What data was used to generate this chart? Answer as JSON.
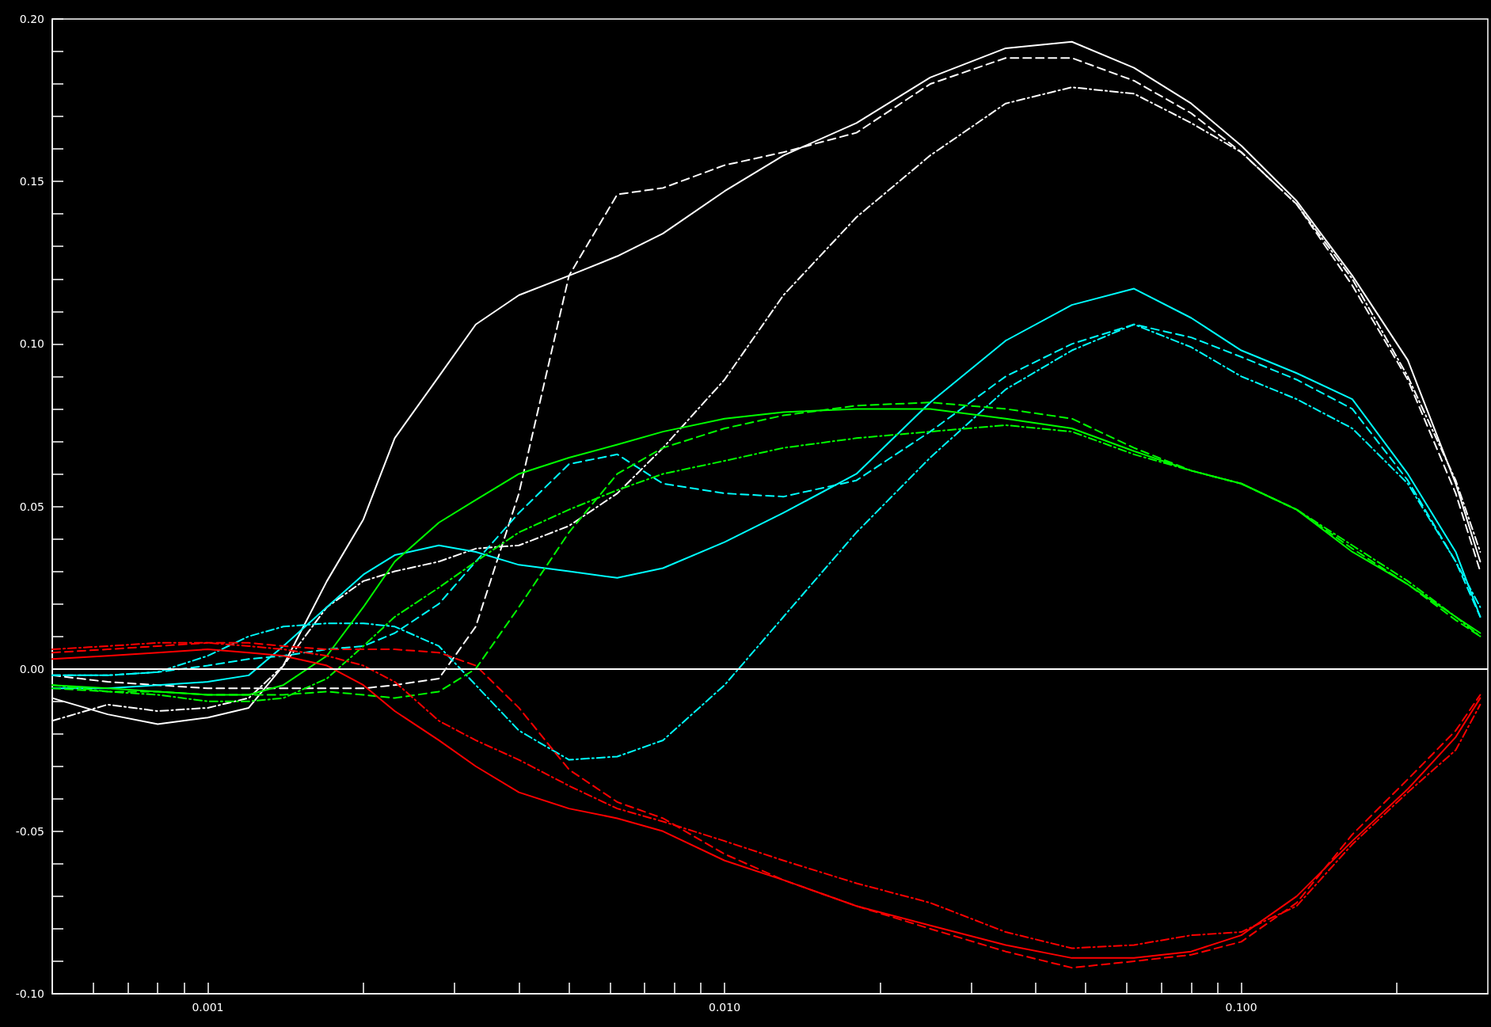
{
  "chart_data": {
    "type": "line",
    "log": "x",
    "grid": false,
    "marker": "none",
    "xlim": [
      0.0005,
      0.3
    ],
    "ylim": [
      -0.1,
      0.2
    ],
    "xticks": [
      {
        "value": 0.0006,
        "label": null
      },
      {
        "value": 0.0007,
        "label": null
      },
      {
        "value": 0.0008,
        "label": null
      },
      {
        "value": 0.0009,
        "label": null
      },
      {
        "value": 0.001,
        "label": "0.001"
      },
      {
        "value": 0.002,
        "label": null
      },
      {
        "value": 0.003,
        "label": null
      },
      {
        "value": 0.004,
        "label": null
      },
      {
        "value": 0.005,
        "label": null
      },
      {
        "value": 0.006,
        "label": null
      },
      {
        "value": 0.007,
        "label": null
      },
      {
        "value": 0.008,
        "label": null
      },
      {
        "value": 0.009,
        "label": null
      },
      {
        "value": 0.01,
        "label": "0.010"
      },
      {
        "value": 0.02,
        "label": null
      },
      {
        "value": 0.03,
        "label": null
      },
      {
        "value": 0.04,
        "label": null
      },
      {
        "value": 0.05,
        "label": null
      },
      {
        "value": 0.06,
        "label": null
      },
      {
        "value": 0.07,
        "label": null
      },
      {
        "value": 0.08,
        "label": null
      },
      {
        "value": 0.09,
        "label": null
      },
      {
        "value": 0.1,
        "label": "0.100"
      },
      {
        "value": 0.2,
        "label": null
      }
    ],
    "yticks": [
      {
        "value": -0.1,
        "label": "-0.10"
      },
      {
        "value": -0.09,
        "label": null
      },
      {
        "value": -0.08,
        "label": null
      },
      {
        "value": -0.07,
        "label": null
      },
      {
        "value": -0.06,
        "label": null
      },
      {
        "value": -0.05,
        "label": "-0.05"
      },
      {
        "value": -0.04,
        "label": null
      },
      {
        "value": -0.03,
        "label": null
      },
      {
        "value": -0.02,
        "label": null
      },
      {
        "value": -0.01,
        "label": null
      },
      {
        "value": 0,
        "label": "0.00"
      },
      {
        "value": 0.01,
        "label": null
      },
      {
        "value": 0.02,
        "label": null
      },
      {
        "value": 0.03,
        "label": null
      },
      {
        "value": 0.04,
        "label": null
      },
      {
        "value": 0.05,
        "label": "0.05"
      },
      {
        "value": 0.06,
        "label": null
      },
      {
        "value": 0.07,
        "label": null
      },
      {
        "value": 0.08,
        "label": null
      },
      {
        "value": 0.09,
        "label": null
      },
      {
        "value": 0.1,
        "label": "0.10"
      },
      {
        "value": 0.11,
        "label": null
      },
      {
        "value": 0.12,
        "label": null
      },
      {
        "value": 0.13,
        "label": null
      },
      {
        "value": 0.14,
        "label": null
      },
      {
        "value": 0.15,
        "label": "0.15"
      },
      {
        "value": 0.16,
        "label": null
      },
      {
        "value": 0.17,
        "label": null
      },
      {
        "value": 0.18,
        "label": null
      },
      {
        "value": 0.19,
        "label": null
      },
      {
        "value": 0.2,
        "label": "0.20"
      }
    ],
    "ref_lines": [
      {
        "axis": "y",
        "value": 0,
        "color": "#ffffff",
        "line_style": "solid"
      }
    ],
    "x": [
      0.0005,
      0.00064,
      0.0008,
      0.001,
      0.0012,
      0.0014,
      0.0017,
      0.002,
      0.0023,
      0.0028,
      0.0033,
      0.004,
      0.005,
      0.0062,
      0.0076,
      0.01,
      0.013,
      0.018,
      0.025,
      0.035,
      0.047,
      0.062,
      0.08,
      0.1,
      0.128,
      0.164,
      0.21,
      0.26,
      0.29
    ],
    "series": [
      {
        "color": "#ffffff",
        "line_style": "solid",
        "values": [
          -0.009,
          -0.014,
          -0.017,
          -0.015,
          -0.012,
          0.001,
          0.027,
          0.046,
          0.071,
          0.09,
          0.106,
          0.115,
          0.121,
          0.127,
          0.134,
          0.147,
          0.158,
          0.168,
          0.182,
          0.191,
          0.193,
          0.185,
          0.174,
          0.161,
          0.144,
          0.121,
          0.095,
          0.057,
          0.033
        ]
      },
      {
        "color": "#ffffff",
        "line_style": "dashed",
        "values": [
          -0.002,
          -0.004,
          -0.005,
          -0.006,
          -0.006,
          -0.006,
          -0.006,
          -0.006,
          -0.005,
          -0.003,
          0.013,
          0.054,
          0.121,
          0.146,
          0.148,
          0.155,
          0.159,
          0.165,
          0.18,
          0.188,
          0.188,
          0.181,
          0.171,
          0.159,
          0.143,
          0.118,
          0.089,
          0.054,
          0.03
        ]
      },
      {
        "color": "#ffffff",
        "line_style": "dashdot",
        "values": [
          -0.016,
          -0.011,
          -0.013,
          -0.012,
          -0.009,
          0.001,
          0.019,
          0.027,
          0.03,
          0.033,
          0.037,
          0.038,
          0.044,
          0.054,
          0.068,
          0.089,
          0.115,
          0.139,
          0.158,
          0.174,
          0.179,
          0.177,
          0.168,
          0.159,
          0.143,
          0.12,
          0.09,
          0.058,
          0.036
        ]
      },
      {
        "color": "#00ffff",
        "line_style": "solid",
        "values": [
          -0.006,
          -0.006,
          -0.005,
          -0.004,
          -0.002,
          0.007,
          0.019,
          0.029,
          0.035,
          0.038,
          0.036,
          0.032,
          0.03,
          0.028,
          0.031,
          0.039,
          0.048,
          0.06,
          0.082,
          0.101,
          0.112,
          0.117,
          0.108,
          0.098,
          0.091,
          0.083,
          0.06,
          0.036,
          0.016
        ]
      },
      {
        "color": "#00ffff",
        "line_style": "dashed",
        "values": [
          -0.002,
          -0.002,
          -0.001,
          0.001,
          0.003,
          0.004,
          0.006,
          0.007,
          0.011,
          0.02,
          0.033,
          0.048,
          0.063,
          0.066,
          0.057,
          0.054,
          0.053,
          0.058,
          0.073,
          0.09,
          0.1,
          0.106,
          0.102,
          0.096,
          0.089,
          0.08,
          0.058,
          0.033,
          0.016
        ]
      },
      {
        "color": "#00ffff",
        "line_style": "dashdot",
        "values": [
          -0.002,
          -0.002,
          -0.001,
          0.004,
          0.01,
          0.013,
          0.014,
          0.014,
          0.013,
          0.007,
          -0.005,
          -0.019,
          -0.028,
          -0.027,
          -0.022,
          -0.005,
          0.016,
          0.042,
          0.065,
          0.086,
          0.098,
          0.106,
          0.099,
          0.09,
          0.083,
          0.074,
          0.057,
          0.033,
          0.019
        ]
      },
      {
        "color": "#00ff00",
        "line_style": "solid",
        "values": [
          -0.005,
          -0.006,
          -0.007,
          -0.008,
          -0.008,
          -0.005,
          0.004,
          0.019,
          0.033,
          0.045,
          0.052,
          0.06,
          0.065,
          0.069,
          0.073,
          0.077,
          0.079,
          0.08,
          0.08,
          0.077,
          0.074,
          0.067,
          0.061,
          0.057,
          0.049,
          0.036,
          0.026,
          0.016,
          0.011
        ]
      },
      {
        "color": "#00ff00",
        "line_style": "dashed",
        "values": [
          -0.006,
          -0.007,
          -0.007,
          -0.008,
          -0.008,
          -0.008,
          -0.007,
          -0.008,
          -0.009,
          -0.007,
          0.0,
          0.019,
          0.042,
          0.06,
          0.068,
          0.074,
          0.078,
          0.081,
          0.082,
          0.08,
          0.077,
          0.068,
          0.061,
          0.057,
          0.049,
          0.037,
          0.026,
          0.015,
          0.01
        ]
      },
      {
        "color": "#00ff00",
        "line_style": "dashdot",
        "values": [
          -0.005,
          -0.007,
          -0.008,
          -0.01,
          -0.01,
          -0.009,
          -0.003,
          0.007,
          0.016,
          0.025,
          0.033,
          0.042,
          0.049,
          0.055,
          0.06,
          0.064,
          0.068,
          0.071,
          0.073,
          0.075,
          0.073,
          0.066,
          0.061,
          0.057,
          0.049,
          0.038,
          0.027,
          0.016,
          0.01
        ]
      },
      {
        "color": "#ff0000",
        "line_style": "solid",
        "values": [
          0.003,
          0.004,
          0.005,
          0.006,
          0.005,
          0.004,
          0.001,
          -0.005,
          -0.013,
          -0.022,
          -0.03,
          -0.038,
          -0.043,
          -0.046,
          -0.05,
          -0.059,
          -0.065,
          -0.073,
          -0.079,
          -0.085,
          -0.089,
          -0.089,
          -0.087,
          -0.082,
          -0.07,
          -0.053,
          -0.037,
          -0.021,
          -0.009
        ]
      },
      {
        "color": "#ff0000",
        "line_style": "dashed",
        "values": [
          0.005,
          0.006,
          0.007,
          0.008,
          0.008,
          0.007,
          0.006,
          0.006,
          0.006,
          0.005,
          0.001,
          -0.012,
          -0.031,
          -0.041,
          -0.046,
          -0.057,
          -0.065,
          -0.073,
          -0.08,
          -0.087,
          -0.092,
          -0.09,
          -0.088,
          -0.084,
          -0.072,
          -0.051,
          -0.034,
          -0.019,
          -0.008
        ]
      },
      {
        "color": "#ff0000",
        "line_style": "dashdot",
        "values": [
          0.006,
          0.007,
          0.008,
          0.008,
          0.007,
          0.006,
          0.004,
          0.001,
          -0.004,
          -0.016,
          -0.022,
          -0.028,
          -0.036,
          -0.043,
          -0.047,
          -0.053,
          -0.059,
          -0.066,
          -0.072,
          -0.081,
          -0.086,
          -0.085,
          -0.082,
          -0.081,
          -0.073,
          -0.054,
          -0.038,
          -0.025,
          -0.011
        ]
      }
    ]
  }
}
